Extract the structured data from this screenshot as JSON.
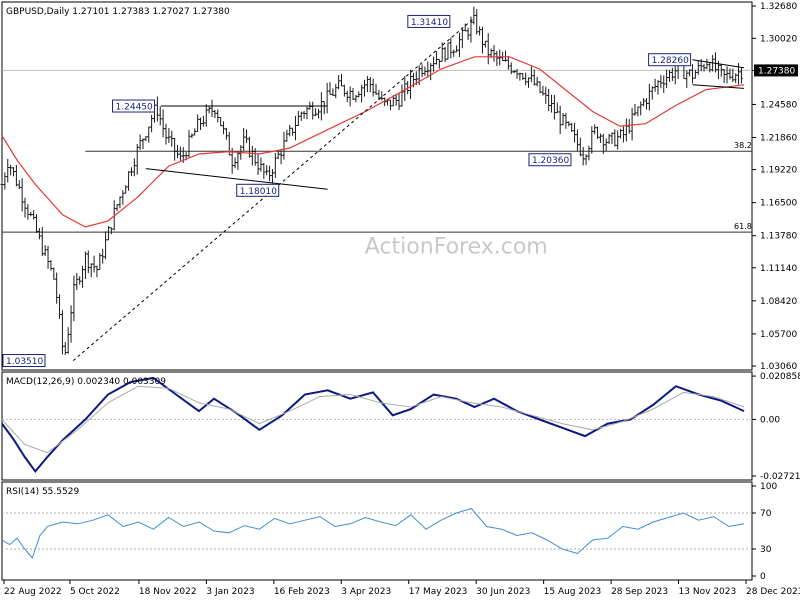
{
  "header": {
    "symbol": "GBPUSD",
    "timeframe": "Daily",
    "open": "1.27101",
    "high": "1.27383",
    "low": "1.27027",
    "close": "1.27380"
  },
  "watermark": "ActionForex.com",
  "colors": {
    "price_bars": "#1a1a1a",
    "ma": "#e53935",
    "macd_main": "#0a1a80",
    "macd_signal": "#aaaaaa",
    "rsi": "#3d8fd6",
    "label_text": "#1a237e",
    "current_price_badge": "#000000"
  },
  "chart_data": [
    {
      "type": "candlestick",
      "title": "GBPUSD,Daily",
      "ylim": [
        1.0306,
        1.3268
      ],
      "yticks": [
        "1.32680",
        "1.30020",
        "1.27380",
        "1.24580",
        "1.21860",
        "1.19220",
        "1.16500",
        "1.13780",
        "1.11140",
        "1.08420",
        "1.05700",
        "1.03060"
      ],
      "current_price": "1.27380",
      "x_ticks": [
        "22 Aug 2022",
        "5 Oct 2022",
        "18 Nov 2022",
        "3 Jan 2023",
        "16 Feb 2023",
        "3 Apr 2023",
        "17 May 2023",
        "30 Jun 2023",
        "15 Aug 2023",
        "28 Sep 2023",
        "13 Nov 2023",
        "28 Dec 2023"
      ],
      "annotations": [
        {
          "text": "1.03510",
          "value": 1.0351
        },
        {
          "text": "1.24450",
          "value": 1.2445
        },
        {
          "text": "1.18010",
          "value": 1.1801
        },
        {
          "text": "1.31410",
          "value": 1.3141
        },
        {
          "text": "1.20360",
          "value": 1.2036
        },
        {
          "text": "1.28260",
          "value": 1.2826
        }
      ],
      "fib_levels": [
        {
          "label": "38.2",
          "value": 1.2073
        },
        {
          "label": "61.8",
          "value": 1.1408
        }
      ],
      "price_path": [
        [
          1.18,
          0
        ],
        [
          1.2,
          4
        ],
        [
          1.15,
          20
        ],
        [
          1.1,
          35
        ],
        [
          1.035,
          41
        ],
        [
          1.09,
          47
        ],
        [
          1.12,
          55
        ],
        [
          1.11,
          63
        ],
        [
          1.16,
          75
        ],
        [
          1.21,
          90
        ],
        [
          1.244,
          102
        ],
        [
          1.22,
          108
        ],
        [
          1.2,
          118
        ],
        [
          1.23,
          130
        ],
        [
          1.244,
          141
        ],
        [
          1.2,
          152
        ],
        [
          1.215,
          160
        ],
        [
          1.185,
          175
        ],
        [
          1.21,
          185
        ],
        [
          1.24,
          198
        ],
        [
          1.245,
          210
        ],
        [
          1.26,
          222
        ],
        [
          1.255,
          232
        ],
        [
          1.265,
          242
        ],
        [
          1.245,
          252
        ],
        [
          1.25,
          262
        ],
        [
          1.275,
          276
        ],
        [
          1.285,
          288
        ],
        [
          1.295,
          300
        ],
        [
          1.314,
          312
        ],
        [
          1.29,
          320
        ],
        [
          1.28,
          330
        ],
        [
          1.275,
          340
        ],
        [
          1.265,
          350
        ],
        [
          1.245,
          362
        ],
        [
          1.225,
          374
        ],
        [
          1.205,
          384
        ],
        [
          1.225,
          392
        ],
        [
          1.215,
          400
        ],
        [
          1.22,
          410
        ],
        [
          1.245,
          422
        ],
        [
          1.265,
          434
        ],
        [
          1.275,
          446
        ],
        [
          1.27,
          456
        ],
        [
          1.282,
          466
        ],
        [
          1.268,
          476
        ],
        [
          1.274,
          490
        ]
      ],
      "ma_path": [
        [
          1.22,
          0
        ],
        [
          1.2,
          10
        ],
        [
          1.18,
          22
        ],
        [
          1.155,
          40
        ],
        [
          1.145,
          55
        ],
        [
          1.15,
          70
        ],
        [
          1.17,
          90
        ],
        [
          1.195,
          110
        ],
        [
          1.205,
          130
        ],
        [
          1.207,
          150
        ],
        [
          1.205,
          170
        ],
        [
          1.21,
          190
        ],
        [
          1.225,
          215
        ],
        [
          1.24,
          240
        ],
        [
          1.255,
          262
        ],
        [
          1.275,
          290
        ],
        [
          1.285,
          312
        ],
        [
          1.285,
          335
        ],
        [
          1.275,
          355
        ],
        [
          1.258,
          372
        ],
        [
          1.24,
          390
        ],
        [
          1.228,
          408
        ],
        [
          1.23,
          425
        ],
        [
          1.245,
          445
        ],
        [
          1.258,
          465
        ],
        [
          1.262,
          490
        ]
      ]
    },
    {
      "type": "line",
      "title": "MACD(12,26,9) 0.002340 0.003309",
      "ylim": [
        -0.0272,
        0.0209
      ],
      "yticks": [
        "0.020858",
        "0.00",
        "-0.027213"
      ],
      "series": [
        {
          "name": "MACD",
          "points": [
            [
              0,
              -0.002
            ],
            [
              8,
              -0.01
            ],
            [
              15,
              -0.018
            ],
            [
              22,
              -0.025
            ],
            [
              30,
              -0.018
            ],
            [
              40,
              -0.01
            ],
            [
              55,
              0.0
            ],
            [
              70,
              0.012
            ],
            [
              85,
              0.018
            ],
            [
              100,
              0.02
            ],
            [
              115,
              0.012
            ],
            [
              130,
              0.004
            ],
            [
              140,
              0.01
            ],
            [
              155,
              0.003
            ],
            [
              170,
              -0.005
            ],
            [
              185,
              0.002
            ],
            [
              200,
              0.012
            ],
            [
              215,
              0.014
            ],
            [
              230,
              0.01
            ],
            [
              245,
              0.013
            ],
            [
              258,
              0.002
            ],
            [
              270,
              0.005
            ],
            [
              285,
              0.012
            ],
            [
              300,
              0.01
            ],
            [
              312,
              0.006
            ],
            [
              325,
              0.01
            ],
            [
              340,
              0.004
            ],
            [
              355,
              0.0
            ],
            [
              370,
              -0.004
            ],
            [
              385,
              -0.008
            ],
            [
              400,
              -0.002
            ],
            [
              415,
              0.0
            ],
            [
              430,
              0.007
            ],
            [
              445,
              0.016
            ],
            [
              460,
              0.012
            ],
            [
              475,
              0.009
            ],
            [
              490,
              0.004
            ]
          ]
        },
        {
          "name": "Signal",
          "points": [
            [
              0,
              0.0
            ],
            [
              15,
              -0.012
            ],
            [
              30,
              -0.016
            ],
            [
              50,
              -0.005
            ],
            [
              70,
              0.008
            ],
            [
              90,
              0.016
            ],
            [
              110,
              0.015
            ],
            [
              130,
              0.008
            ],
            [
              150,
              0.005
            ],
            [
              170,
              -0.002
            ],
            [
              190,
              0.004
            ],
            [
              210,
              0.011
            ],
            [
              230,
              0.012
            ],
            [
              250,
              0.008
            ],
            [
              270,
              0.006
            ],
            [
              290,
              0.011
            ],
            [
              310,
              0.008
            ],
            [
              330,
              0.006
            ],
            [
              350,
              0.002
            ],
            [
              370,
              -0.002
            ],
            [
              390,
              -0.005
            ],
            [
              410,
              -0.001
            ],
            [
              430,
              0.005
            ],
            [
              450,
              0.013
            ],
            [
              470,
              0.011
            ],
            [
              490,
              0.006
            ]
          ]
        }
      ]
    },
    {
      "type": "line",
      "title": "RSI(14) 55.5529",
      "ylim": [
        0,
        100
      ],
      "yticks": [
        "100",
        "70",
        "30",
        "0"
      ],
      "series": [
        {
          "name": "RSI",
          "points": [
            [
              0,
              40
            ],
            [
              5,
              35
            ],
            [
              10,
              42
            ],
            [
              15,
              30
            ],
            [
              20,
              20
            ],
            [
              25,
              45
            ],
            [
              30,
              55
            ],
            [
              40,
              60
            ],
            [
              50,
              58
            ],
            [
              60,
              62
            ],
            [
              70,
              68
            ],
            [
              80,
              55
            ],
            [
              90,
              60
            ],
            [
              100,
              52
            ],
            [
              110,
              65
            ],
            [
              120,
              55
            ],
            [
              130,
              60
            ],
            [
              140,
              50
            ],
            [
              150,
              48
            ],
            [
              160,
              56
            ],
            [
              170,
              52
            ],
            [
              180,
              64
            ],
            [
              190,
              58
            ],
            [
              200,
              62
            ],
            [
              210,
              66
            ],
            [
              220,
              55
            ],
            [
              230,
              58
            ],
            [
              240,
              65
            ],
            [
              250,
              60
            ],
            [
              260,
              56
            ],
            [
              270,
              68
            ],
            [
              280,
              52
            ],
            [
              290,
              62
            ],
            [
              300,
              70
            ],
            [
              310,
              75
            ],
            [
              320,
              55
            ],
            [
              330,
              52
            ],
            [
              340,
              45
            ],
            [
              350,
              48
            ],
            [
              360,
              40
            ],
            [
              370,
              30
            ],
            [
              380,
              25
            ],
            [
              390,
              40
            ],
            [
              400,
              42
            ],
            [
              410,
              55
            ],
            [
              420,
              52
            ],
            [
              430,
              60
            ],
            [
              440,
              65
            ],
            [
              450,
              70
            ],
            [
              460,
              62
            ],
            [
              470,
              66
            ],
            [
              480,
              55
            ],
            [
              490,
              58
            ]
          ]
        }
      ]
    }
  ]
}
